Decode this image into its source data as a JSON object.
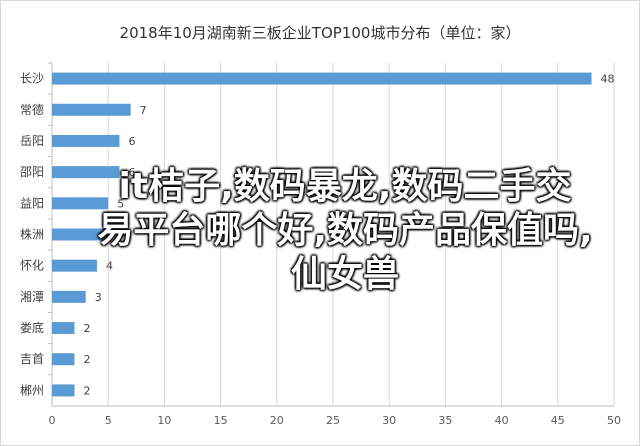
{
  "chart_data": {
    "type": "bar",
    "orientation": "horizontal",
    "title": "2018年10月湖南新三板企业TOP100城市分布（单位：家）",
    "categories": [
      "长沙",
      "常德",
      "岳阳",
      "邵阳",
      "益阳",
      "株洲",
      "怀化",
      "湘潭",
      "娄底",
      "吉首",
      "郴州"
    ],
    "values": [
      48,
      7,
      6,
      6,
      5,
      5,
      4,
      3,
      2,
      2,
      2
    ],
    "xlim": [
      0,
      50
    ],
    "x_ticks": [
      0,
      5,
      10,
      15,
      20,
      25,
      30,
      35,
      40,
      45,
      50
    ],
    "grid": true,
    "bar_color": "#5B9BD5",
    "data_labels": true
  },
  "overlay_text": {
    "lines": [
      "it桔子,数码暴龙,数码二手交",
      "易平台哪个好,数码产品保值吗,",
      "仙女兽"
    ]
  }
}
